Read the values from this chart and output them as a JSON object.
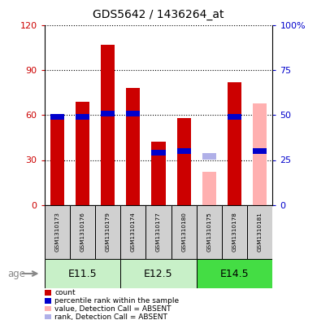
{
  "title": "GDS5642 / 1436264_at",
  "samples": [
    "GSM1310173",
    "GSM1310176",
    "GSM1310179",
    "GSM1310174",
    "GSM1310177",
    "GSM1310180",
    "GSM1310175",
    "GSM1310178",
    "GSM1310181"
  ],
  "age_groups": [
    {
      "label": "E11.5",
      "start": 0,
      "end": 3
    },
    {
      "label": "E12.5",
      "start": 3,
      "end": 6
    },
    {
      "label": "E14.5",
      "start": 6,
      "end": 9
    }
  ],
  "count_values": [
    59,
    69,
    107,
    78,
    42,
    58,
    null,
    82,
    null
  ],
  "percentile_values": [
    49,
    49,
    51,
    51,
    29,
    30,
    null,
    49,
    30
  ],
  "absent_count": [
    null,
    null,
    null,
    null,
    null,
    null,
    22,
    null,
    68
  ],
  "absent_rank": [
    null,
    null,
    null,
    null,
    null,
    null,
    27,
    null,
    null
  ],
  "ylim_left": [
    0,
    120
  ],
  "ylim_right": [
    0,
    100
  ],
  "yticks_left": [
    0,
    30,
    60,
    90,
    120
  ],
  "ytick_labels_left": [
    "0",
    "30",
    "60",
    "90",
    "120"
  ],
  "yticks_right": [
    0,
    25,
    50,
    75,
    100
  ],
  "ytick_labels_right": [
    "0",
    "25",
    "50",
    "75",
    "100%"
  ],
  "color_count": "#cc0000",
  "color_percentile": "#0000cc",
  "color_absent_count": "#ffb0b0",
  "color_absent_rank": "#b0b0e8",
  "bar_width": 0.55,
  "group_bg_color": "#d0d0d0",
  "age_bg_e115": "#c8f0c8",
  "age_bg_e125": "#c8f0c8",
  "age_bg_e145": "#44dd44",
  "legend_items": [
    {
      "label": "count",
      "color": "#cc0000"
    },
    {
      "label": "percentile rank within the sample",
      "color": "#0000cc"
    },
    {
      "label": "value, Detection Call = ABSENT",
      "color": "#ffb0b0"
    },
    {
      "label": "rank, Detection Call = ABSENT",
      "color": "#b0b0e8"
    }
  ]
}
